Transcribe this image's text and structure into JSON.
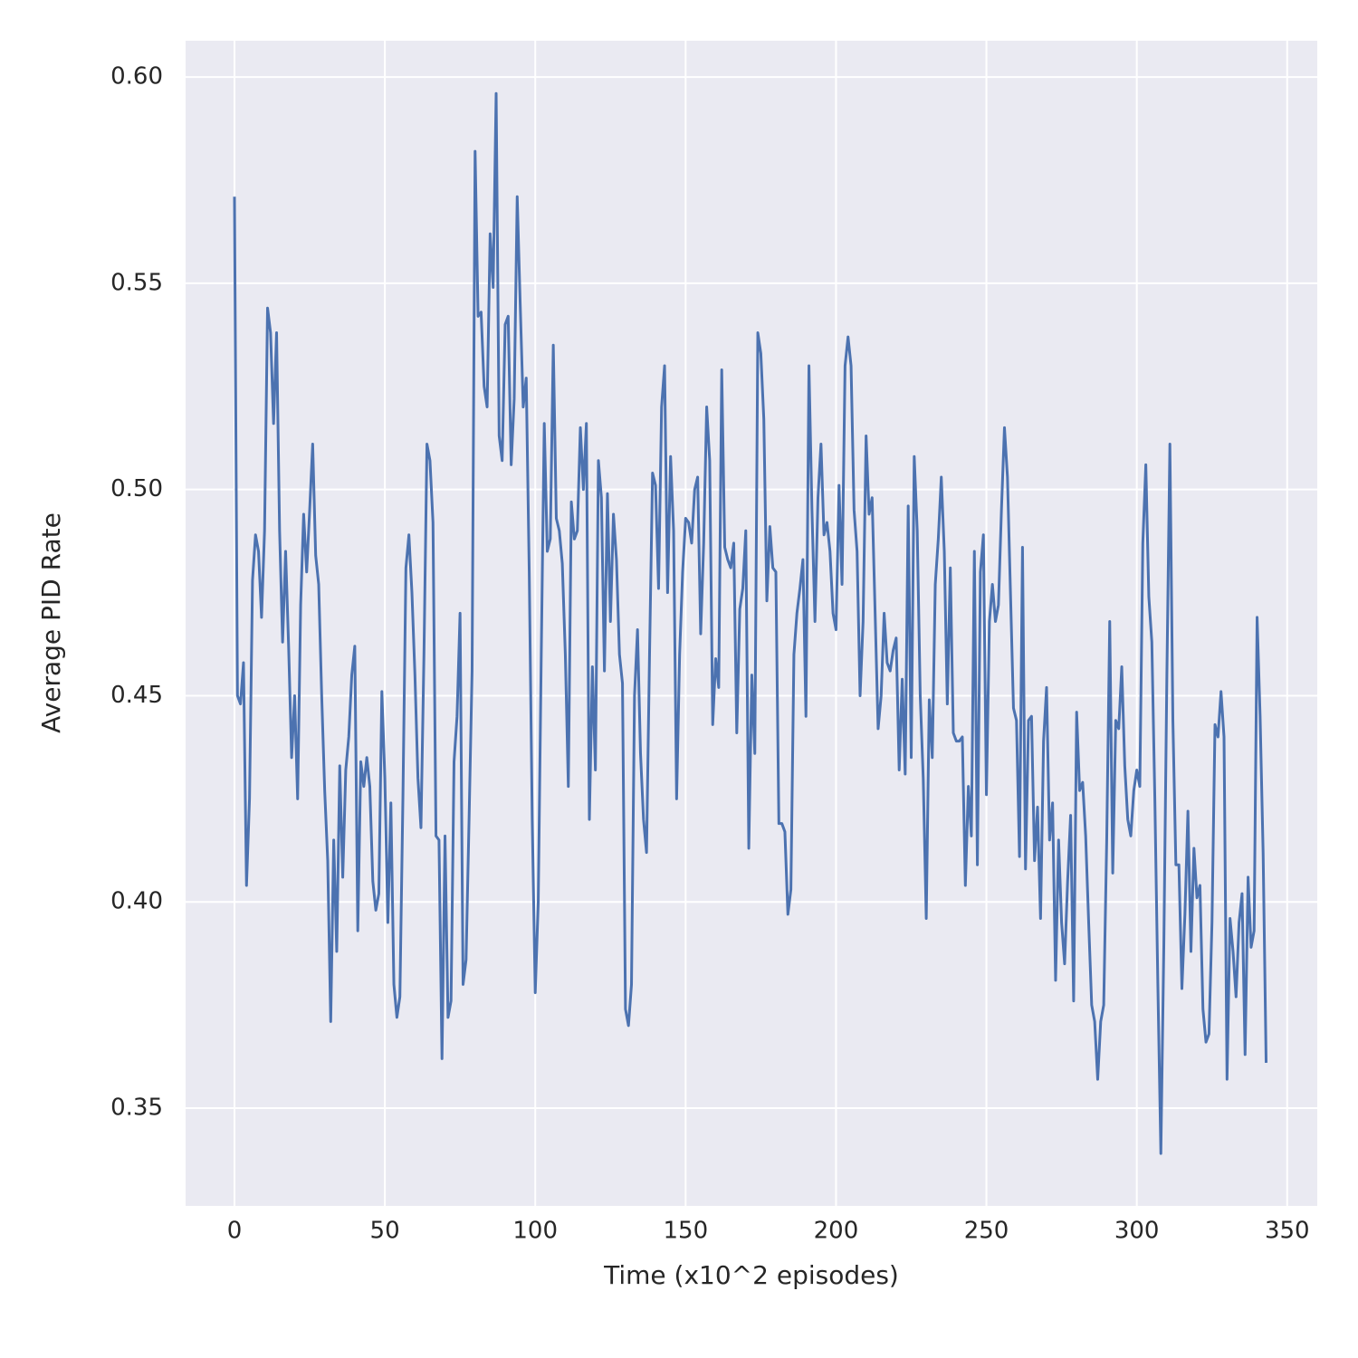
{
  "chart_data": {
    "type": "line",
    "x_label": "Time (x10^2 episodes)",
    "y_label": "Average PID Rate",
    "x": [
      0,
      1,
      2,
      3,
      4,
      5,
      6,
      7,
      8,
      9,
      10,
      11,
      12,
      13,
      14,
      15,
      16,
      17,
      18,
      19,
      20,
      21,
      22,
      23,
      24,
      25,
      26,
      27,
      28,
      29,
      30,
      31,
      32,
      33,
      34,
      35,
      36,
      37,
      38,
      39,
      40,
      41,
      42,
      43,
      44,
      45,
      46,
      47,
      48,
      49,
      50,
      51,
      52,
      53,
      54,
      55,
      56,
      57,
      58,
      59,
      60,
      61,
      62,
      63,
      64,
      65,
      66,
      67,
      68,
      69,
      70,
      71,
      72,
      73,
      74,
      75,
      76,
      77,
      78,
      79,
      80,
      81,
      82,
      83,
      84,
      85,
      86,
      87,
      88,
      89,
      90,
      91,
      92,
      93,
      94,
      95,
      96,
      97,
      98,
      99,
      100,
      101,
      102,
      103,
      104,
      105,
      106,
      107,
      108,
      109,
      110,
      111,
      112,
      113,
      114,
      115,
      116,
      117,
      118,
      119,
      120,
      121,
      122,
      123,
      124,
      125,
      126,
      127,
      128,
      129,
      130,
      131,
      132,
      133,
      134,
      135,
      136,
      137,
      138,
      139,
      140,
      141,
      142,
      143,
      144,
      145,
      146,
      147,
      148,
      149,
      150,
      151,
      152,
      153,
      154,
      155,
      156,
      157,
      158,
      159,
      160,
      161,
      162,
      163,
      164,
      165,
      166,
      167,
      168,
      169,
      170,
      171,
      172,
      173,
      174,
      175,
      176,
      177,
      178,
      179,
      180,
      181,
      182,
      183,
      184,
      185,
      186,
      187,
      188,
      189,
      190,
      191,
      192,
      193,
      194,
      195,
      196,
      197,
      198,
      199,
      200,
      201,
      202,
      203,
      204,
      205,
      206,
      207,
      208,
      209,
      210,
      211,
      212,
      213,
      214,
      215,
      216,
      217,
      218,
      219,
      220,
      221,
      222,
      223,
      224,
      225,
      226,
      227,
      228,
      229,
      230,
      231,
      232,
      233,
      234,
      235,
      236,
      237,
      238,
      239,
      240,
      241,
      242,
      243,
      244,
      245,
      246,
      247,
      248,
      249,
      250,
      251,
      252,
      253,
      254,
      255,
      256,
      257,
      258,
      259,
      260,
      261,
      262,
      263,
      264,
      265,
      266,
      267,
      268,
      269,
      270,
      271,
      272,
      273,
      274,
      275,
      276,
      277,
      278,
      279,
      280,
      281,
      282,
      283,
      284,
      285,
      286,
      287,
      288,
      289,
      290,
      291,
      292,
      293,
      294,
      295,
      296,
      297,
      298,
      299,
      300,
      301,
      302,
      303,
      304,
      305,
      306,
      307,
      308,
      309,
      310,
      311,
      312,
      313,
      314,
      315,
      316,
      317,
      318,
      319,
      320,
      321,
      322,
      323,
      324,
      325,
      326,
      327,
      328,
      329,
      330,
      331,
      332,
      333,
      334,
      335,
      336,
      337,
      338,
      339,
      340,
      341,
      342,
      343
    ],
    "values": [
      0.571,
      0.45,
      0.448,
      0.458,
      0.404,
      0.425,
      0.478,
      0.489,
      0.485,
      0.469,
      0.49,
      0.544,
      0.538,
      0.516,
      0.538,
      0.49,
      0.463,
      0.485,
      0.462,
      0.435,
      0.45,
      0.425,
      0.472,
      0.494,
      0.48,
      0.495,
      0.511,
      0.484,
      0.477,
      0.45,
      0.427,
      0.41,
      0.371,
      0.415,
      0.388,
      0.433,
      0.406,
      0.432,
      0.44,
      0.455,
      0.462,
      0.393,
      0.434,
      0.428,
      0.435,
      0.428,
      0.405,
      0.398,
      0.402,
      0.451,
      0.43,
      0.395,
      0.424,
      0.38,
      0.372,
      0.377,
      0.425,
      0.481,
      0.489,
      0.475,
      0.455,
      0.43,
      0.418,
      0.46,
      0.511,
      0.507,
      0.492,
      0.416,
      0.415,
      0.362,
      0.416,
      0.372,
      0.376,
      0.434,
      0.445,
      0.47,
      0.38,
      0.386,
      0.42,
      0.456,
      0.582,
      0.542,
      0.543,
      0.525,
      0.52,
      0.562,
      0.549,
      0.596,
      0.513,
      0.507,
      0.54,
      0.542,
      0.506,
      0.522,
      0.571,
      0.545,
      0.52,
      0.527,
      0.48,
      0.42,
      0.378,
      0.4,
      0.46,
      0.516,
      0.485,
      0.488,
      0.535,
      0.493,
      0.49,
      0.482,
      0.46,
      0.428,
      0.497,
      0.488,
      0.49,
      0.515,
      0.5,
      0.516,
      0.42,
      0.457,
      0.432,
      0.507,
      0.498,
      0.456,
      0.499,
      0.468,
      0.494,
      0.483,
      0.46,
      0.453,
      0.374,
      0.37,
      0.38,
      0.45,
      0.466,
      0.436,
      0.42,
      0.412,
      0.46,
      0.504,
      0.501,
      0.476,
      0.52,
      0.53,
      0.475,
      0.508,
      0.49,
      0.425,
      0.46,
      0.48,
      0.493,
      0.492,
      0.487,
      0.5,
      0.503,
      0.465,
      0.487,
      0.52,
      0.507,
      0.443,
      0.459,
      0.452,
      0.529,
      0.486,
      0.483,
      0.481,
      0.487,
      0.441,
      0.471,
      0.476,
      0.49,
      0.413,
      0.455,
      0.436,
      0.538,
      0.533,
      0.517,
      0.473,
      0.491,
      0.481,
      0.48,
      0.419,
      0.419,
      0.417,
      0.397,
      0.403,
      0.46,
      0.47,
      0.476,
      0.483,
      0.445,
      0.53,
      0.495,
      0.468,
      0.498,
      0.511,
      0.489,
      0.492,
      0.485,
      0.47,
      0.466,
      0.501,
      0.477,
      0.53,
      0.537,
      0.53,
      0.495,
      0.485,
      0.45,
      0.468,
      0.513,
      0.494,
      0.498,
      0.47,
      0.442,
      0.45,
      0.47,
      0.458,
      0.456,
      0.461,
      0.464,
      0.432,
      0.454,
      0.431,
      0.496,
      0.435,
      0.508,
      0.49,
      0.45,
      0.43,
      0.396,
      0.449,
      0.435,
      0.477,
      0.488,
      0.503,
      0.485,
      0.448,
      0.481,
      0.441,
      0.439,
      0.439,
      0.44,
      0.404,
      0.428,
      0.416,
      0.485,
      0.409,
      0.48,
      0.489,
      0.426,
      0.468,
      0.477,
      0.468,
      0.472,
      0.495,
      0.515,
      0.503,
      0.475,
      0.447,
      0.444,
      0.411,
      0.486,
      0.408,
      0.444,
      0.445,
      0.41,
      0.423,
      0.396,
      0.439,
      0.452,
      0.415,
      0.424,
      0.381,
      0.415,
      0.395,
      0.385,
      0.405,
      0.421,
      0.376,
      0.446,
      0.427,
      0.429,
      0.416,
      0.395,
      0.375,
      0.371,
      0.357,
      0.371,
      0.375,
      0.415,
      0.468,
      0.407,
      0.444,
      0.442,
      0.457,
      0.433,
      0.42,
      0.416,
      0.427,
      0.432,
      0.428,
      0.487,
      0.506,
      0.474,
      0.463,
      0.425,
      0.38,
      0.339,
      0.39,
      0.455,
      0.511,
      0.444,
      0.409,
      0.409,
      0.379,
      0.397,
      0.422,
      0.388,
      0.413,
      0.401,
      0.404,
      0.374,
      0.366,
      0.368,
      0.395,
      0.443,
      0.44,
      0.451,
      0.44,
      0.357,
      0.396,
      0.388,
      0.377,
      0.395,
      0.402,
      0.363,
      0.406,
      0.389,
      0.393,
      0.469,
      0.445,
      0.412,
      0.361
    ],
    "color": "#4c72b0",
    "xlim": [
      -16.25,
      360
    ],
    "ylim": [
      0.3263,
      0.6088
    ],
    "xticks": [
      0,
      50,
      100,
      150,
      200,
      250,
      300,
      350
    ],
    "yticks": [
      0.35,
      {
        "value": 0.4,
        "label": "0.40"
      },
      0.45,
      {
        "value": 0.5,
        "label": "0.50"
      },
      0.55,
      {
        "value": 0.6,
        "label": "0.60"
      }
    ],
    "grid": true
  }
}
